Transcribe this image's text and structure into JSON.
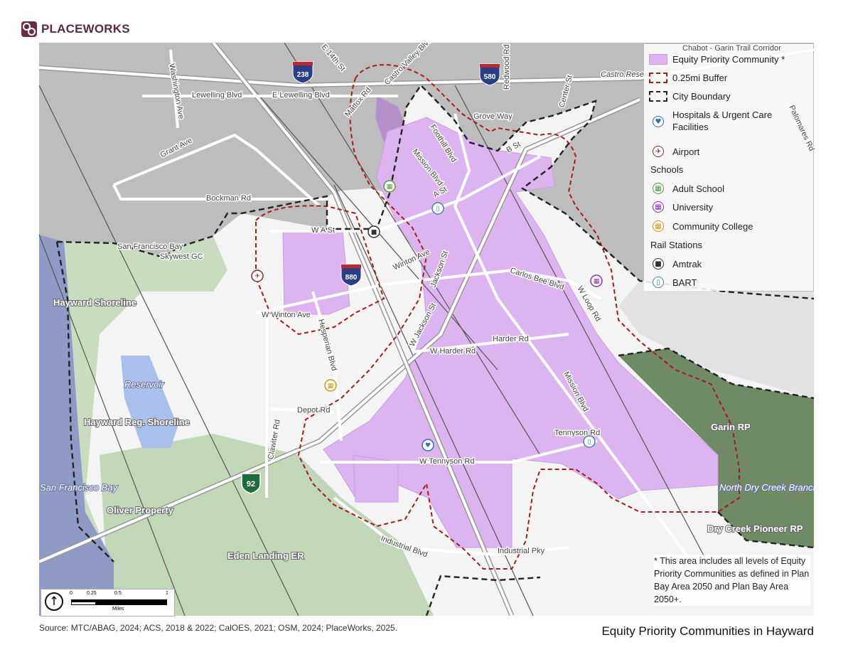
{
  "brand": {
    "name": "PLACEWORKS",
    "color": "#6b2c4a"
  },
  "title": "Equity Priority Communities in Hayward",
  "source": "Source: MTC/ABAG, 2024; ACS, 2018 & 2022; CalOES, 2021; OSM, 2024; PlaceWorks, 2025.",
  "legend": {
    "epc": "Equity Priority Community *",
    "buffer": "0.25mi Buffer",
    "city": "City Boundary",
    "hospitals": "Hospitals & Urgent Care Facilities",
    "airport": "Airport",
    "schools_heading": "Schools",
    "adult_school": "Adult School",
    "university": "University",
    "community_college": "Community College",
    "rail_heading": "Rail Stations",
    "amtrak": "Amtrak",
    "bart": "BART",
    "colors": {
      "epc": "#dcb5f0",
      "buffer": "#a31d1d",
      "city": "#222222",
      "hospital": "#2f6fb5",
      "airport": "#8b2a2a",
      "adult_school": "#4f9a3c",
      "university": "#8d2fb0",
      "community_college": "#c79a1e",
      "amtrak": "#333333",
      "bart": "#4a7fa8"
    }
  },
  "footnote": "* This area includes all levels of Equity Priority Communities as defined in Plan Bay Area 2050 and Plan Bay Area 2050+.",
  "scale": {
    "ticks": [
      "0",
      "0.25",
      "0.5",
      "1"
    ],
    "unit": "Miles"
  },
  "shields": {
    "i238": "238",
    "i580": "580",
    "i880": "880",
    "sr92": "92"
  },
  "labels": {
    "e14th": "E 14th St",
    "castro_valley": "Castro Valley Blvd",
    "lewelling": "Lewelling Blvd",
    "e_lewelling": "E Lewelling Blvd",
    "washington": "Washington Ave",
    "grant": "Grant Ave",
    "bockman": "Bockman Rd",
    "mattox": "Mattox Rd",
    "redwood": "Redwood Rd",
    "center": "Center St",
    "grove": "Grove Way",
    "foothill": "Foothill Blvd",
    "mission": "Mission Blvd",
    "b_st": "B St",
    "a_st": "A St",
    "wa_st": "W A St",
    "winton": "Winton Ave",
    "w_winton": "W Winton Ave",
    "jackson": "Jackson St",
    "w_jackson": "W Jackson St",
    "carlos_bee": "Carlos Bee Blvd",
    "w_loop": "W Loop Rd",
    "hesperian": "Hesperian Blvd",
    "w_harder": "W Harder Rd",
    "harder": "Harder Rd",
    "mission2": "Mission Blvd",
    "depot": "Depot Rd",
    "clawiter": "Clawiter Rd",
    "tennyson": "Tennyson Rd",
    "w_tennyson": "W Tennyson Rd",
    "industrial_blvd": "Industrial Blvd",
    "industrial_pky": "Industrial Pky",
    "palomares": "Palomares Rd",
    "castro_res": "Castro Reservoir",
    "chabot": "Chabot - Garin Trail Corridor",
    "sf_bay_small": "San Francisco Bay",
    "skywest": "Skywest GC",
    "hayward_shoreline": "Hayward Shoreline",
    "hayward_reg": "Hayward Reg. Shoreline",
    "reservoir": "Reservoir",
    "sf_bay": "San Francisco Bay",
    "oliver": "Oliver Property",
    "eden": "Eden Landing ER",
    "garin": "Garin RP",
    "north_dry": "North Dry Creek Branch",
    "dry_creek": "Dry Creek Pioneer RP"
  }
}
